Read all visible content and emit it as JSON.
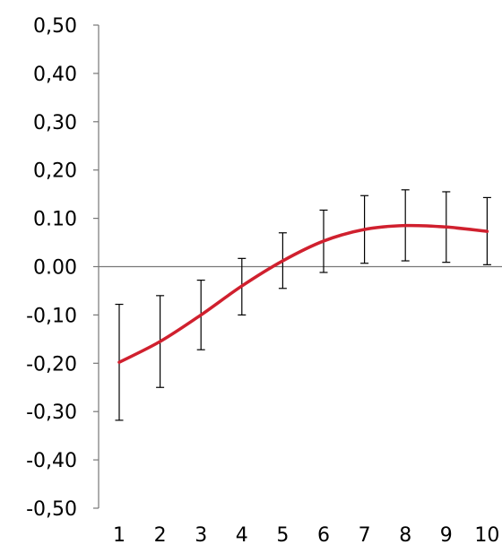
{
  "chart_data": {
    "type": "line",
    "title": "",
    "xlabel": "",
    "ylabel": "",
    "categories": [
      "1",
      "2",
      "3",
      "4",
      "5",
      "6",
      "7",
      "8",
      "9",
      "10"
    ],
    "series": [
      {
        "values": [
          -0.198,
          -0.155,
          -0.1,
          -0.04,
          0.012,
          0.053,
          0.077,
          0.085,
          0.082,
          0.073
        ],
        "error_low": [
          -0.318,
          -0.25,
          -0.172,
          -0.1,
          -0.045,
          -0.012,
          0.007,
          0.012,
          0.009,
          0.004
        ],
        "error_high": [
          -0.078,
          -0.06,
          -0.028,
          0.017,
          0.07,
          0.117,
          0.147,
          0.159,
          0.155,
          0.143
        ],
        "color": "#d0202e"
      }
    ],
    "ylim": [
      -0.5,
      0.5
    ],
    "yticks": [
      0.5,
      0.4,
      0.3,
      0.2,
      0.1,
      0.0,
      -0.1,
      -0.2,
      -0.3,
      -0.4,
      -0.5
    ],
    "ytick_labels": [
      "0,50",
      "0,40",
      "0,30",
      "0,20",
      "0.10",
      "0.00",
      "-0,10",
      "-0,20",
      "-0,30",
      "-0,40",
      "-0,50"
    ],
    "grid": false,
    "legend": "none"
  }
}
